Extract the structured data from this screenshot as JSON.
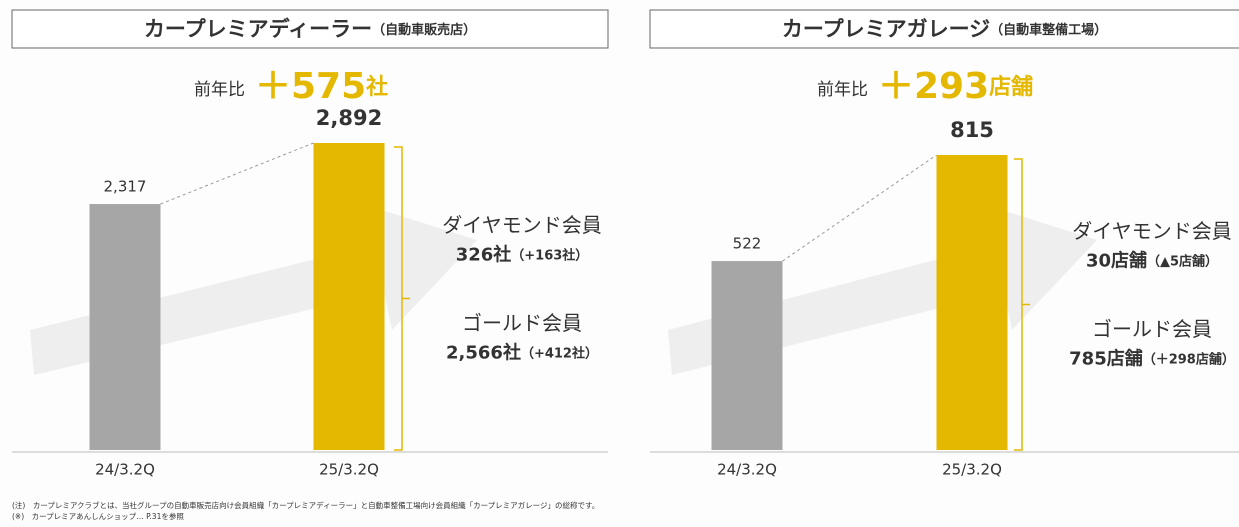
{
  "chart_data": [
    {
      "type": "bar",
      "title": "カープレミアディーラー",
      "subtitle": "（自動車販売店）",
      "categories": [
        "24/3.2Q",
        "25/3.2Q"
      ],
      "values": [
        2317,
        2892
      ],
      "value_labels": [
        "2,317",
        "2,892"
      ],
      "colors": [
        "#a6a6a6",
        "#e5b800"
      ],
      "yoy_label": "前年比",
      "yoy_value": "＋575",
      "yoy_unit": "社",
      "breakdown": [
        {
          "name": "ダイヤモンド会員",
          "count": "326社",
          "change": "（+163社）"
        },
        {
          "name": "ゴールド会員",
          "count": "2,566社",
          "change": "（+412社）"
        }
      ]
    },
    {
      "type": "bar",
      "title": "カープレミアガレージ",
      "subtitle": "（自動車整備工場）",
      "categories": [
        "24/3.2Q",
        "25/3.2Q"
      ],
      "values": [
        522,
        815
      ],
      "colors": [
        "#a6a6a6",
        "#e5b800"
      ],
      "yoy_label": "前年比",
      "yoy_value": "＋293",
      "yoy_unit": "店舗",
      "breakdown": [
        {
          "name": "ダイヤモンド会員",
          "count": "30店舗",
          "change": "（▲5店舗）"
        },
        {
          "name": "ゴールド会員",
          "count": "785店舗",
          "change": "（＋298店舗）"
        }
      ]
    }
  ],
  "notes": [
    "(注)　カープレミアクラブとは、当社グループの自動車販売店向け会員組織「カープレミアディーラー」と自動車整備工場向け会員組織「カープレミアガレージ」の総称です。",
    "(※)　カープレミアあんしんショップ… P.31を参照"
  ]
}
